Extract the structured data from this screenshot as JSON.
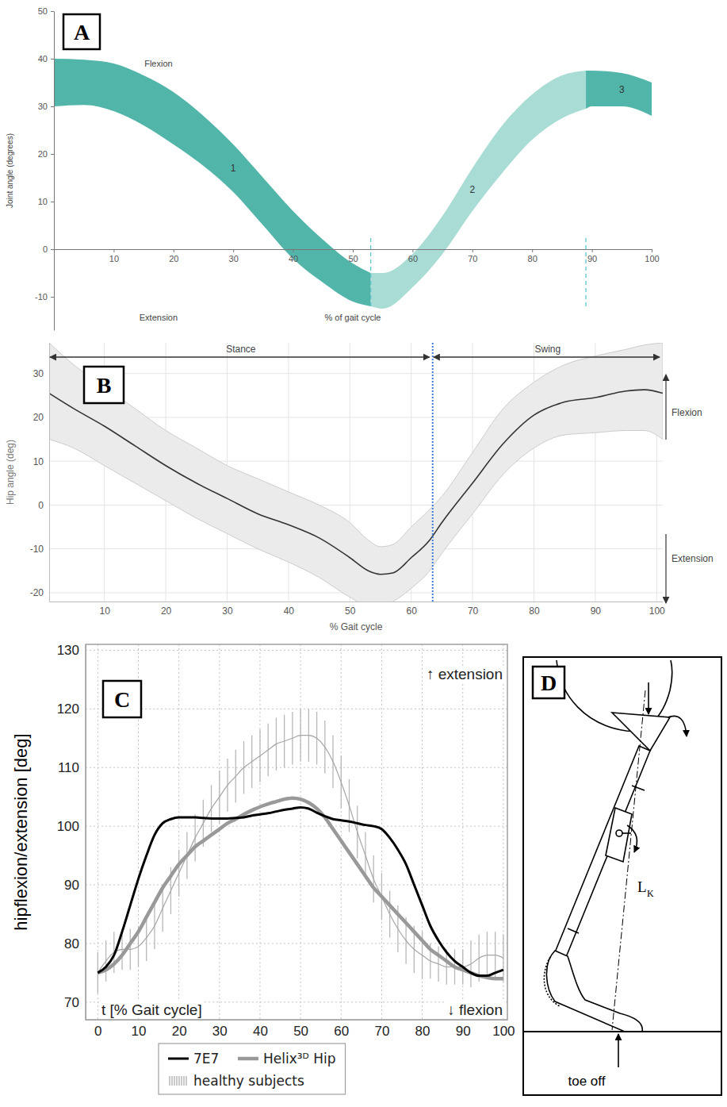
{
  "chart_data": [
    {
      "type": "area",
      "panel_label": "A",
      "xlabel": "% of gait cycle",
      "ylabel": "Joint angle (degrees)",
      "annotations": [
        "Flexion",
        "Extension"
      ],
      "xlim": [
        0,
        100
      ],
      "ylim": [
        -17,
        50
      ],
      "xticks": [
        10,
        20,
        30,
        40,
        50,
        60,
        70,
        80,
        90,
        100
      ],
      "yticks": [
        -10,
        0,
        10,
        20,
        30,
        40,
        50
      ],
      "grid": false,
      "series": [
        {
          "name": "1",
          "color": "#52b5aa",
          "x": [
            0,
            5,
            10,
            15,
            20,
            25,
            30,
            35,
            40,
            45,
            50,
            53
          ],
          "upper": [
            40,
            39.8,
            39,
            36.5,
            33,
            28,
            22,
            15,
            8,
            2,
            -3,
            -5
          ],
          "lower": [
            30,
            30.3,
            29,
            26,
            22,
            17.5,
            12,
            5,
            -2,
            -7,
            -11,
            -12
          ]
        },
        {
          "name": "2",
          "color": "#a8dcd5",
          "x": [
            53,
            55,
            60,
            65,
            70,
            75,
            80,
            85,
            89
          ],
          "upper": [
            -5,
            -5,
            -1,
            7,
            17,
            26,
            32.5,
            36.5,
            37.5
          ],
          "lower": [
            -12,
            -12.5,
            -8,
            -1,
            8,
            16,
            23,
            27.5,
            29.5
          ]
        },
        {
          "name": "3",
          "color": "#52b5aa",
          "x": [
            89,
            90,
            95,
            100
          ],
          "upper": [
            37.5,
            37.5,
            37,
            35
          ],
          "lower": [
            29.5,
            30,
            30,
            28
          ]
        }
      ]
    },
    {
      "type": "line",
      "panel_label": "B",
      "xlabel": "% Gait cycle",
      "ylabel": "Hip angle (deg)",
      "annotations": [
        "Flexion",
        "Extension"
      ],
      "phases": [
        {
          "label": "Stance",
          "start": 1,
          "end": 63.5
        },
        {
          "label": "Swing",
          "start": 63.5,
          "end": 101
        }
      ],
      "xlim": [
        1,
        101
      ],
      "ylim": [
        -22,
        37
      ],
      "xticks": [
        10,
        20,
        30,
        40,
        50,
        60,
        70,
        80,
        90,
        100
      ],
      "yticks": [
        -20,
        -10,
        0,
        10,
        20,
        30
      ],
      "grid": true,
      "series": [
        {
          "color": "#333333",
          "x": [
            1,
            5,
            10,
            15,
            20,
            25,
            30,
            35,
            40,
            45,
            50,
            53,
            55,
            57,
            60,
            63,
            65,
            70,
            75,
            80,
            85,
            90,
            95,
            98,
            101
          ],
          "values": [
            25.5,
            22,
            18,
            13.5,
            9,
            5,
            1.5,
            -2,
            -4.5,
            -7.5,
            -12,
            -15,
            -15.8,
            -15.5,
            -12,
            -8,
            -4,
            5,
            14,
            20.5,
            23.5,
            24.5,
            26,
            26.3,
            25.5
          ],
          "upper": [
            37,
            32,
            27,
            22,
            17,
            13,
            9,
            6,
            3,
            0,
            -4,
            -8,
            -9.5,
            -9,
            -5,
            -1,
            2,
            12,
            22,
            28,
            32,
            34,
            35.5,
            36.5,
            37
          ],
          "lower": [
            15,
            13,
            9,
            5,
            1,
            -3,
            -6.5,
            -10,
            -13,
            -16.5,
            -21,
            -23,
            -23,
            -22,
            -19,
            -15,
            -11,
            -2,
            7,
            13,
            16,
            16.5,
            17,
            17,
            15
          ]
        }
      ]
    },
    {
      "type": "line",
      "panel_label": "C",
      "xlabel": "t [% Gait cycle]",
      "ylabel": "hipflexion/extension [deg]",
      "annotations": [
        "↑ extension",
        "↓ flexion"
      ],
      "xlim": [
        -3,
        101
      ],
      "ylim": [
        67,
        131
      ],
      "xticks": [
        0,
        10,
        20,
        30,
        40,
        50,
        60,
        70,
        80,
        90,
        100
      ],
      "yticks": [
        70,
        80,
        90,
        100,
        110,
        120,
        130
      ],
      "grid": true,
      "legend": "bottom",
      "x": [
        0,
        2,
        4,
        6,
        8,
        10,
        12,
        14,
        16,
        18,
        20,
        22,
        24,
        26,
        28,
        30,
        32,
        34,
        36,
        38,
        40,
        42,
        44,
        46,
        48,
        50,
        52,
        54,
        56,
        58,
        60,
        62,
        64,
        66,
        68,
        70,
        72,
        74,
        76,
        78,
        80,
        82,
        84,
        86,
        88,
        90,
        92,
        94,
        96,
        98,
        100
      ],
      "series": [
        {
          "name": "7E7",
          "color": "#000000",
          "values": [
            75,
            76,
            78,
            82,
            86.5,
            91,
            95,
            98.5,
            100.5,
            101.2,
            101.5,
            101.5,
            101.5,
            101.4,
            101.3,
            101.3,
            101.3,
            101.4,
            101.5,
            101.8,
            102,
            102.2,
            102.5,
            102.8,
            103,
            103.2,
            103,
            102.3,
            101.7,
            101.2,
            101,
            100.8,
            100.5,
            100.2,
            100,
            99.5,
            98,
            96,
            93.5,
            90,
            86.5,
            83,
            80.5,
            78.5,
            77,
            76,
            75,
            74.5,
            74.5,
            75,
            75.5
          ]
        },
        {
          "name": "Helix³ᴰ Hip",
          "color": "#999999",
          "values": [
            75,
            75.5,
            76.5,
            78,
            80,
            82,
            84.5,
            87,
            89.5,
            91.5,
            93.5,
            95,
            96.5,
            97.5,
            98.5,
            99.5,
            100.5,
            101.2,
            102,
            102.7,
            103.3,
            103.8,
            104.2,
            104.6,
            104.8,
            104.6,
            104,
            103,
            101.5,
            99.5,
            97.5,
            95.5,
            93.5,
            91.5,
            89.5,
            88,
            86.5,
            85,
            83.5,
            82,
            80.5,
            79,
            78,
            77,
            76,
            75.5,
            75,
            74.5,
            74.2,
            74,
            74
          ]
        },
        {
          "name": "healthy subjects",
          "color": "#a6a6a6",
          "values": [
            75,
            77,
            78.5,
            79,
            79,
            79.5,
            81,
            83,
            86,
            89,
            92,
            95,
            98,
            100.5,
            103,
            105,
            107,
            108.5,
            110,
            111,
            112,
            113,
            114,
            114.5,
            115,
            115.5,
            115.5,
            115,
            113.5,
            111,
            107.5,
            103.5,
            99,
            95,
            91,
            88,
            85,
            82.5,
            80.5,
            79,
            78,
            77,
            76.5,
            76,
            76,
            76,
            76.5,
            77.5,
            78,
            78,
            77.5
          ],
          "error": [
            3.5,
            3.5,
            3.5,
            3.5,
            3.5,
            3.5,
            4,
            4,
            4,
            4,
            4,
            4,
            4,
            4,
            4,
            4.5,
            4.5,
            4.5,
            4.5,
            4.5,
            4.5,
            4.5,
            4.5,
            4.5,
            4.5,
            4.5,
            4.5,
            4.5,
            4.5,
            4.5,
            4.5,
            4.5,
            4.5,
            4,
            4,
            4,
            4,
            4,
            4,
            4,
            4,
            3,
            3,
            3,
            3,
            3,
            4,
            4,
            4,
            4,
            4
          ]
        }
      ]
    }
  ],
  "diagram": {
    "panel_label": "D",
    "labels": {
      "lever": "L",
      "lever_subscript": "K",
      "toe_off": "toe off"
    }
  }
}
